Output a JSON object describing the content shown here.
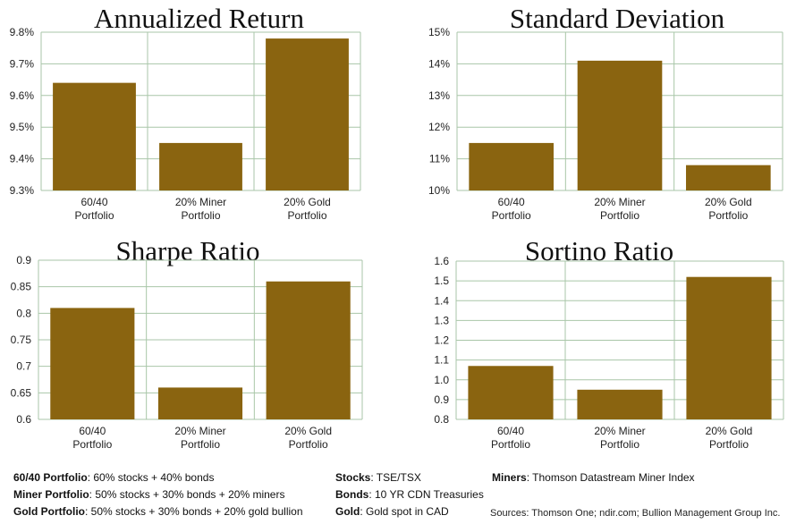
{
  "chart_data": [
    {
      "type": "bar",
      "title": "Annualized Return",
      "categories": [
        "60/40\nPortfolio",
        "20% Miner\nPortfolio",
        "20% Gold\nPortfolio"
      ],
      "values": [
        9.64,
        9.45,
        9.78
      ],
      "yticks": [
        "9.3%",
        "9.4%",
        "9.5%",
        "9.6%",
        "9.7%",
        "9.8%"
      ],
      "ylim": [
        9.3,
        9.8
      ]
    },
    {
      "type": "bar",
      "title": "Standard Deviation",
      "categories": [
        "60/40\nPortfolio",
        "20% Miner\nPortfolio",
        "20% Gold\nPortfolio"
      ],
      "values": [
        11.5,
        14.1,
        10.8
      ],
      "yticks": [
        "10%",
        "11%",
        "12%",
        "13%",
        "14%",
        "15%"
      ],
      "ylim": [
        10,
        15
      ]
    },
    {
      "type": "bar",
      "title": "Sharpe Ratio",
      "categories": [
        "60/40\nPortfolio",
        "20% Miner\nPortfolio",
        "20% Gold\nPortfolio"
      ],
      "values": [
        0.81,
        0.66,
        0.86
      ],
      "yticks": [
        "0.6",
        "0.65",
        "0.7",
        "0.75",
        "0.8",
        "0.85",
        "0.9"
      ],
      "ylim": [
        0.6,
        0.9
      ]
    },
    {
      "type": "bar",
      "title": "Sortino Ratio",
      "categories": [
        "60/40\nPortfolio",
        "20% Miner\nPortfolio",
        "20% Gold\nPortfolio"
      ],
      "values": [
        1.07,
        0.95,
        1.52
      ],
      "yticks": [
        "0.8",
        "0.9",
        "1.0",
        "1.1",
        "1.2",
        "1.3",
        "1.4",
        "1.5",
        "1.6"
      ],
      "ylim": [
        0.8,
        1.6
      ]
    }
  ],
  "colors": {
    "bar": "#8a6410",
    "grid": "#a9c6a8",
    "axis_text": "#222222"
  },
  "footer": {
    "col1": [
      {
        "label": "60/40 Portfolio",
        "text": ": 60% stocks + 40% bonds"
      },
      {
        "label": "Miner Portfolio",
        "text": ": 50% stocks + 30% bonds + 20% miners"
      },
      {
        "label": "Gold Portfolio",
        "text": ": 50% stocks + 30% bonds + 20% gold bullion"
      }
    ],
    "col2": [
      {
        "label": "Stocks",
        "text": ": TSE/TSX"
      },
      {
        "label": "Bonds",
        "text": ": 10 YR CDN Treasuries"
      },
      {
        "label": "Gold",
        "text": ": Gold spot in CAD"
      }
    ],
    "col3": [
      {
        "label": "Miners",
        "text": ": Thomson Datastream Miner Index"
      }
    ],
    "sources": "Sources: Thomson One; ndir.com; Bullion Management Group Inc."
  }
}
